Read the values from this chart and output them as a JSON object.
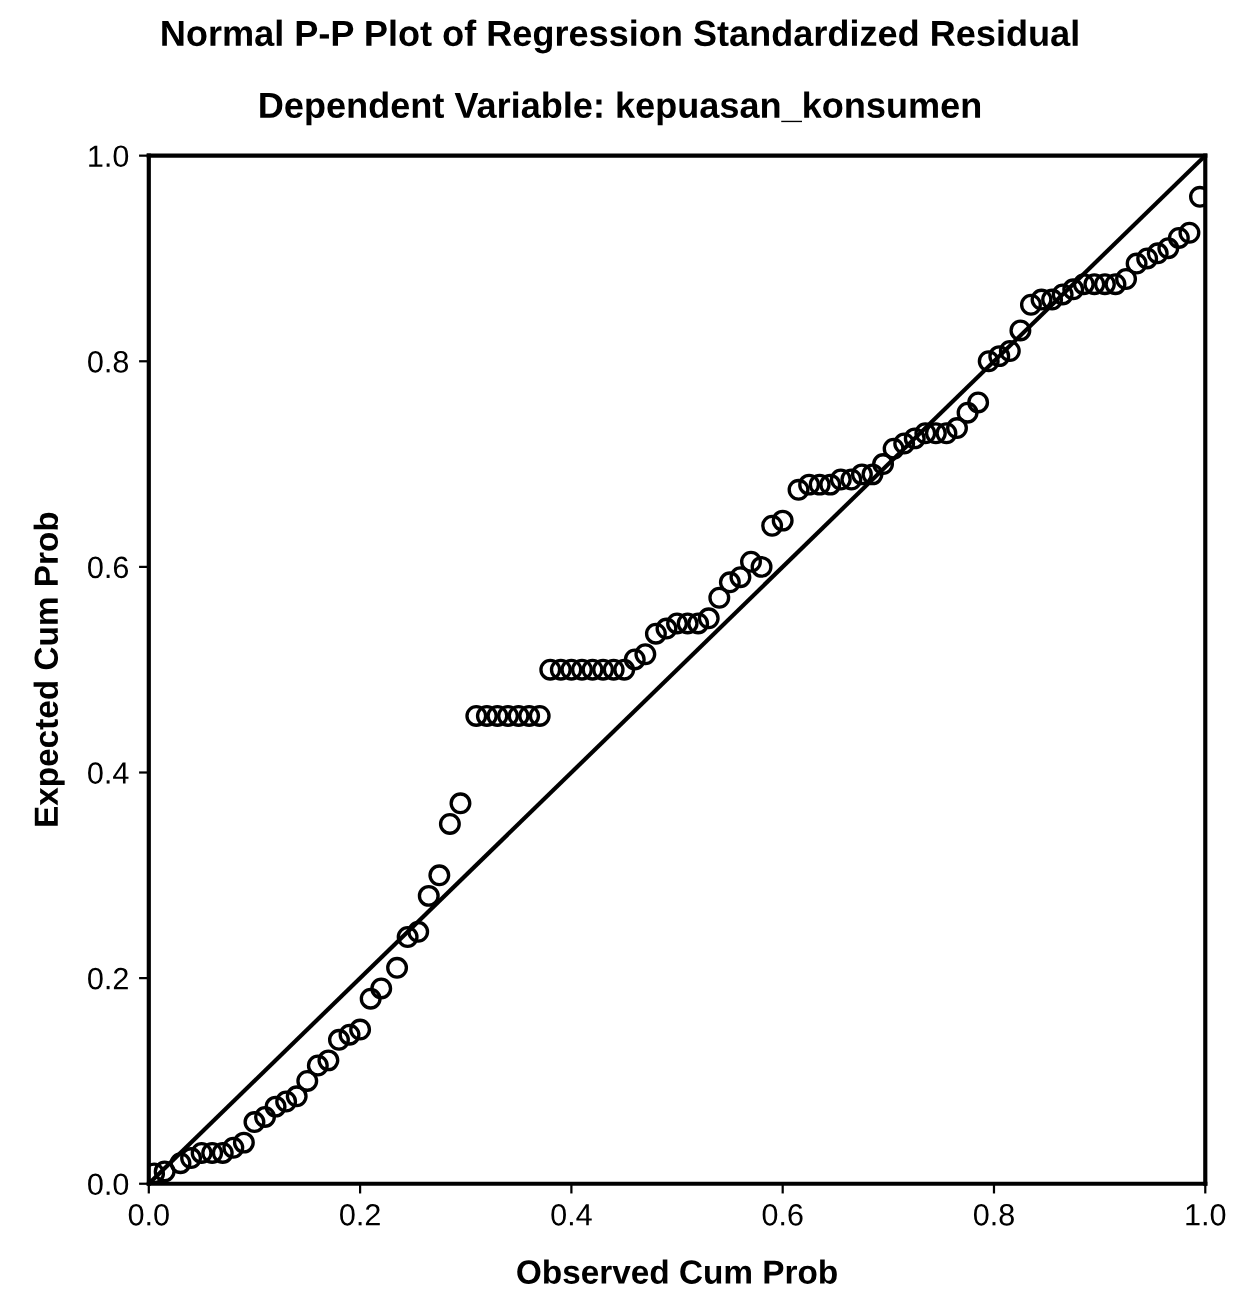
{
  "chart_data": {
    "type": "scatter",
    "title": "Normal P-P Plot of Regression Standardized Residual",
    "subtitle": "Dependent Variable: kepuasan_konsumen",
    "xlabel": "Observed Cum Prob",
    "ylabel": "Expected Cum Prob",
    "xlim": [
      0,
      1
    ],
    "ylim": [
      0,
      1
    ],
    "xticks": [
      {
        "value": 0,
        "label": "0.0"
      },
      {
        "value": 0.2,
        "label": "0.2"
      },
      {
        "value": 0.4,
        "label": "0.4"
      },
      {
        "value": 0.6,
        "label": "0.6"
      },
      {
        "value": 0.8,
        "label": "0.8"
      },
      {
        "value": 1,
        "label": "1.0"
      }
    ],
    "yticks": [
      {
        "value": 0,
        "label": "0.0"
      },
      {
        "value": 0.2,
        "label": "0.2"
      },
      {
        "value": 0.4,
        "label": "0.4"
      },
      {
        "value": 0.6,
        "label": "0.6"
      },
      {
        "value": 0.8,
        "label": "0.8"
      },
      {
        "value": 1,
        "label": "1.0"
      }
    ],
    "grid": false,
    "marker": "circle",
    "series": [
      {
        "color": "#000000",
        "x": [
          0.005,
          0.015,
          0.03,
          0.04,
          0.05,
          0.06,
          0.07,
          0.08,
          0.09,
          0.1,
          0.11,
          0.12,
          0.13,
          0.14,
          0.15,
          0.16,
          0.17,
          0.18,
          0.19,
          0.2,
          0.21,
          0.22,
          0.235,
          0.245,
          0.255,
          0.265,
          0.275,
          0.285,
          0.295,
          0.31,
          0.32,
          0.33,
          0.34,
          0.35,
          0.36,
          0.37,
          0.38,
          0.39,
          0.4,
          0.41,
          0.42,
          0.43,
          0.44,
          0.45,
          0.46,
          0.47,
          0.48,
          0.49,
          0.5,
          0.51,
          0.52,
          0.53,
          0.54,
          0.55,
          0.56,
          0.57,
          0.58,
          0.59,
          0.6,
          0.615,
          0.625,
          0.635,
          0.645,
          0.655,
          0.665,
          0.675,
          0.685,
          0.695,
          0.705,
          0.715,
          0.725,
          0.735,
          0.745,
          0.755,
          0.765,
          0.775,
          0.785,
          0.795,
          0.805,
          0.815,
          0.825,
          0.835,
          0.845,
          0.855,
          0.865,
          0.875,
          0.885,
          0.895,
          0.905,
          0.915,
          0.925,
          0.935,
          0.945,
          0.955,
          0.965,
          0.975,
          0.985,
          0.995
        ],
        "values": [
          0.01,
          0.012,
          0.02,
          0.025,
          0.03,
          0.03,
          0.03,
          0.035,
          0.04,
          0.06,
          0.065,
          0.075,
          0.08,
          0.085,
          0.1,
          0.115,
          0.12,
          0.14,
          0.145,
          0.15,
          0.18,
          0.19,
          0.21,
          0.24,
          0.245,
          0.28,
          0.3,
          0.35,
          0.37,
          0.455,
          0.455,
          0.455,
          0.455,
          0.455,
          0.455,
          0.455,
          0.5,
          0.5,
          0.5,
          0.5,
          0.5,
          0.5,
          0.5,
          0.5,
          0.51,
          0.515,
          0.535,
          0.54,
          0.545,
          0.545,
          0.545,
          0.55,
          0.57,
          0.585,
          0.59,
          0.605,
          0.6,
          0.64,
          0.645,
          0.675,
          0.68,
          0.68,
          0.68,
          0.685,
          0.685,
          0.69,
          0.69,
          0.7,
          0.715,
          0.72,
          0.725,
          0.73,
          0.73,
          0.73,
          0.735,
          0.75,
          0.76,
          0.8,
          0.805,
          0.81,
          0.83,
          0.855,
          0.86,
          0.86,
          0.865,
          0.87,
          0.875,
          0.875,
          0.875,
          0.875,
          0.88,
          0.895,
          0.9,
          0.905,
          0.91,
          0.92,
          0.925,
          0.96
        ]
      },
      {
        "type": "line",
        "color": "#000000",
        "x": [
          0,
          1
        ],
        "values": [
          0,
          1
        ],
        "marker": "none",
        "line_style": "solid"
      }
    ]
  }
}
